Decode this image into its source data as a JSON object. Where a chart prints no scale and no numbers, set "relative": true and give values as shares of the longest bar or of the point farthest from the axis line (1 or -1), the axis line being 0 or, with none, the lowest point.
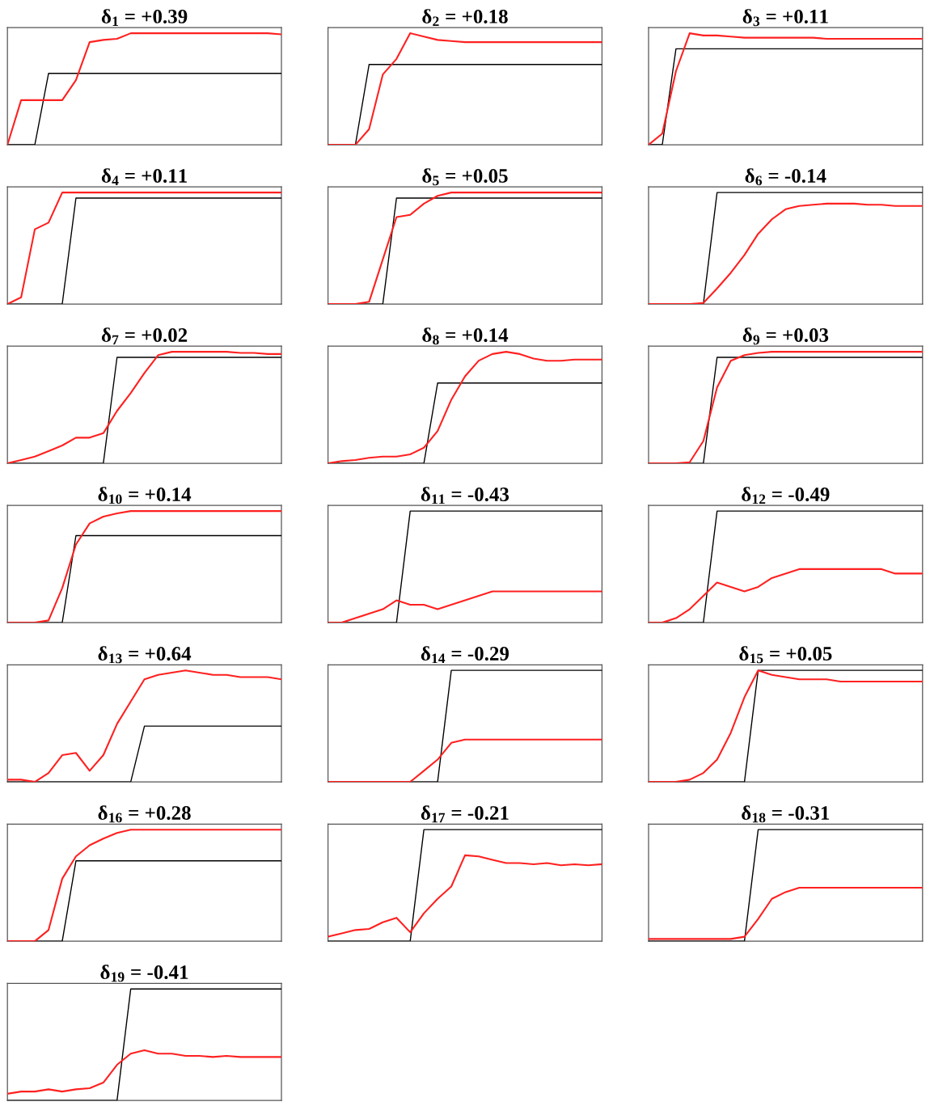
{
  "chart_data": [
    {
      "type": "line",
      "relative": true,
      "title": "δ$_{1}$ = +0.39",
      "categories": [
        null,
        null,
        null,
        null,
        null,
        null,
        null,
        null,
        null,
        null,
        null,
        null,
        null,
        null,
        null,
        null,
        null,
        null,
        null,
        null,
        null
      ],
      "series": [
        {
          "type": "line",
          "color": "#ff2020",
          "values": [
            0,
            0.4,
            0.4,
            0.4,
            0.4,
            0.58,
            0.92,
            0.94,
            0.95,
            1,
            1,
            1,
            1,
            1,
            1,
            1,
            1,
            1,
            1,
            1,
            0.99
          ]
        },
        {
          "type": "line",
          "color": "#000000",
          "values": [
            0,
            0,
            0,
            0.64,
            0.64,
            0.64,
            0.64,
            0.64,
            0.64,
            0.64,
            0.64,
            0.64,
            0.64,
            0.64,
            0.64,
            0.64,
            0.64,
            0.64,
            0.64,
            0.64,
            0.64
          ]
        }
      ]
    },
    {
      "type": "line",
      "relative": true,
      "title": "δ$_{2}$ = +0.18",
      "categories": [
        null,
        null,
        null,
        null,
        null,
        null,
        null,
        null,
        null,
        null,
        null,
        null,
        null,
        null,
        null,
        null,
        null,
        null,
        null,
        null,
        null
      ],
      "series": [
        {
          "type": "line",
          "color": "#ff2020",
          "values": [
            0,
            0,
            0,
            0.14,
            0.63,
            0.77,
            1,
            0.97,
            0.94,
            0.93,
            0.92,
            0.92,
            0.92,
            0.92,
            0.92,
            0.92,
            0.92,
            0.92,
            0.92,
            0.92,
            0.92
          ]
        },
        {
          "type": "line",
          "color": "#000000",
          "values": [
            null,
            null,
            0,
            0.72,
            0.72,
            0.72,
            0.72,
            0.72,
            0.72,
            0.72,
            0.72,
            0.72,
            0.72,
            0.72,
            0.72,
            0.72,
            0.72,
            0.72,
            0.72,
            0.72,
            0.72
          ]
        }
      ]
    },
    {
      "type": "line",
      "relative": true,
      "title": "δ$_{3}$ = +0.11",
      "categories": [
        null,
        null,
        null,
        null,
        null,
        null,
        null,
        null,
        null,
        null,
        null,
        null,
        null,
        null,
        null,
        null,
        null,
        null,
        null,
        null,
        null
      ],
      "series": [
        {
          "type": "line",
          "color": "#ff2020",
          "values": [
            0,
            0.1,
            0.66,
            1,
            0.98,
            0.98,
            0.97,
            0.96,
            0.96,
            0.96,
            0.96,
            0.96,
            0.96,
            0.95,
            0.95,
            0.95,
            0.95,
            0.95,
            0.95,
            0.95,
            0.95
          ]
        },
        {
          "type": "line",
          "color": "#000000",
          "values": [
            0,
            0,
            0.86,
            0.86,
            0.86,
            0.86,
            0.86,
            0.86,
            0.86,
            0.86,
            0.86,
            0.86,
            0.86,
            0.86,
            0.86,
            0.86,
            0.86,
            0.86,
            0.86,
            0.86,
            0.86
          ]
        }
      ]
    },
    {
      "type": "line",
      "relative": true,
      "title": "δ$_{4}$ = +0.11",
      "categories": [
        null,
        null,
        null,
        null,
        null,
        null,
        null,
        null,
        null,
        null,
        null,
        null,
        null,
        null,
        null,
        null,
        null,
        null,
        null,
        null,
        null
      ],
      "series": [
        {
          "type": "line",
          "color": "#ff2020",
          "values": [
            0,
            0.06,
            0.67,
            0.73,
            1,
            1,
            1,
            1,
            1,
            1,
            1,
            1,
            1,
            1,
            1,
            1,
            1,
            1,
            1,
            1,
            1
          ]
        },
        {
          "type": "line",
          "color": "#000000",
          "values": [
            0,
            0,
            0,
            0,
            0,
            0.95,
            0.95,
            0.95,
            0.95,
            0.95,
            0.95,
            0.95,
            0.95,
            0.95,
            0.95,
            0.95,
            0.95,
            0.95,
            0.95,
            0.95,
            0.95
          ]
        }
      ]
    },
    {
      "type": "line",
      "relative": true,
      "title": "δ$_{5}$ = +0.05",
      "categories": [
        null,
        null,
        null,
        null,
        null,
        null,
        null,
        null,
        null,
        null,
        null,
        null,
        null,
        null,
        null,
        null,
        null,
        null,
        null,
        null,
        null
      ],
      "series": [
        {
          "type": "line",
          "color": "#ff2020",
          "values": [
            0,
            0,
            0,
            0.02,
            0.4,
            0.78,
            0.8,
            0.9,
            0.97,
            1,
            1,
            1,
            1,
            1,
            1,
            1,
            1,
            1,
            1,
            1,
            1
          ]
        },
        {
          "type": "line",
          "color": "#000000",
          "values": [
            null,
            null,
            0,
            0,
            0,
            0.95,
            0.95,
            0.95,
            0.95,
            0.95,
            0.95,
            0.95,
            0.95,
            0.95,
            0.95,
            0.95,
            0.95,
            0.95,
            0.95,
            0.95,
            0.95
          ]
        }
      ]
    },
    {
      "type": "line",
      "relative": true,
      "title": "δ$_{6}$ = -0.14",
      "categories": [
        null,
        null,
        null,
        null,
        null,
        null,
        null,
        null,
        null,
        null,
        null,
        null,
        null,
        null,
        null,
        null,
        null,
        null,
        null,
        null,
        null
      ],
      "series": [
        {
          "type": "line",
          "color": "#ff2020",
          "values": [
            0,
            0,
            0,
            0,
            0.01,
            0.14,
            0.28,
            0.44,
            0.63,
            0.76,
            0.85,
            0.88,
            0.89,
            0.9,
            0.9,
            0.9,
            0.89,
            0.89,
            0.88,
            0.88,
            0.88
          ]
        },
        {
          "type": "line",
          "color": "#000000",
          "values": [
            null,
            null,
            null,
            0,
            0,
            1,
            1,
            1,
            1,
            1,
            1,
            1,
            1,
            1,
            1,
            1,
            1,
            1,
            1,
            1,
            1
          ]
        }
      ]
    },
    {
      "type": "line",
      "relative": true,
      "title": "δ$_{7}$ = +0.02",
      "categories": [
        null,
        null,
        null,
        null,
        null,
        null,
        null,
        null,
        null,
        null,
        null,
        null,
        null,
        null,
        null,
        null,
        null,
        null,
        null,
        null,
        null
      ],
      "series": [
        {
          "type": "line",
          "color": "#ff2020",
          "values": [
            0,
            0.03,
            0.06,
            0.11,
            0.16,
            0.23,
            0.23,
            0.27,
            0.47,
            0.63,
            0.81,
            0.97,
            1,
            1,
            1,
            1,
            1,
            0.99,
            0.99,
            0.98,
            0.98
          ]
        },
        {
          "type": "line",
          "color": "#000000",
          "values": [
            0,
            0,
            0,
            0,
            0,
            0,
            0,
            0,
            0.95,
            0.95,
            0.95,
            0.95,
            0.95,
            0.95,
            0.95,
            0.95,
            0.95,
            0.95,
            0.95,
            0.95,
            0.95
          ]
        }
      ]
    },
    {
      "type": "line",
      "relative": true,
      "title": "δ$_{8}$ = +0.14",
      "categories": [
        null,
        null,
        null,
        null,
        null,
        null,
        null,
        null,
        null,
        null,
        null,
        null,
        null,
        null,
        null,
        null,
        null,
        null,
        null,
        null,
        null
      ],
      "series": [
        {
          "type": "line",
          "color": "#ff2020",
          "values": [
            0,
            0.02,
            0.03,
            0.05,
            0.06,
            0.06,
            0.08,
            0.14,
            0.29,
            0.57,
            0.78,
            0.92,
            0.98,
            1,
            0.98,
            0.94,
            0.92,
            0.92,
            0.93,
            0.93,
            0.93
          ]
        },
        {
          "type": "line",
          "color": "#000000",
          "values": [
            0,
            0,
            0,
            0,
            0,
            0,
            0,
            0,
            0.72,
            0.72,
            0.72,
            0.72,
            0.72,
            0.72,
            0.72,
            0.72,
            0.72,
            0.72,
            0.72,
            0.72,
            0.72
          ]
        }
      ]
    },
    {
      "type": "line",
      "relative": true,
      "title": "δ$_{9}$ = +0.03",
      "categories": [
        null,
        null,
        null,
        null,
        null,
        null,
        null,
        null,
        null,
        null,
        null,
        null,
        null,
        null,
        null,
        null,
        null,
        null,
        null,
        null,
        null
      ],
      "series": [
        {
          "type": "line",
          "color": "#ff2020",
          "values": [
            0,
            0,
            0,
            0.01,
            0.2,
            0.68,
            0.92,
            0.97,
            0.99,
            1,
            1,
            1,
            1,
            1,
            1,
            1,
            1,
            1,
            1,
            1,
            1
          ]
        },
        {
          "type": "line",
          "color": "#000000",
          "values": [
            null,
            null,
            0,
            0,
            0,
            0.95,
            0.95,
            0.95,
            0.95,
            0.95,
            0.95,
            0.95,
            0.95,
            0.95,
            0.95,
            0.95,
            0.95,
            0.95,
            0.95,
            0.95,
            0.95
          ]
        }
      ]
    },
    {
      "type": "line",
      "relative": true,
      "title": "δ$_{10}$ = +0.14",
      "categories": [
        null,
        null,
        null,
        null,
        null,
        null,
        null,
        null,
        null,
        null,
        null,
        null,
        null,
        null,
        null,
        null,
        null,
        null,
        null,
        null,
        null
      ],
      "series": [
        {
          "type": "line",
          "color": "#ff2020",
          "values": [
            0,
            0,
            0,
            0.02,
            0.31,
            0.7,
            0.89,
            0.95,
            0.98,
            1,
            1,
            1,
            1,
            1,
            1,
            1,
            1,
            1,
            1,
            1,
            1
          ]
        },
        {
          "type": "line",
          "color": "#000000",
          "values": [
            null,
            null,
            0,
            0,
            0,
            0.78,
            0.78,
            0.78,
            0.78,
            0.78,
            0.78,
            0.78,
            0.78,
            0.78,
            0.78,
            0.78,
            0.78,
            0.78,
            0.78,
            0.78,
            0.78
          ]
        }
      ]
    },
    {
      "type": "line",
      "relative": true,
      "title": "δ$_{11}$ = -0.43",
      "categories": [
        null,
        null,
        null,
        null,
        null,
        null,
        null,
        null,
        null,
        null,
        null,
        null,
        null,
        null,
        null,
        null,
        null,
        null,
        null,
        null,
        null
      ],
      "series": [
        {
          "type": "line",
          "color": "#ff2020",
          "values": [
            0,
            0,
            0.04,
            0.08,
            0.12,
            0.2,
            0.16,
            0.16,
            0.12,
            0.16,
            0.2,
            0.24,
            0.28,
            0.28,
            0.28,
            0.28,
            0.28,
            0.28,
            0.28,
            0.28,
            0.28
          ]
        },
        {
          "type": "line",
          "color": "#000000",
          "values": [
            null,
            0,
            0,
            0,
            0,
            0,
            1,
            1,
            1,
            1,
            1,
            1,
            1,
            1,
            1,
            1,
            1,
            1,
            1,
            1,
            1
          ]
        }
      ]
    },
    {
      "type": "line",
      "relative": true,
      "title": "δ$_{12}$ = -0.49",
      "categories": [
        null,
        null,
        null,
        null,
        null,
        null,
        null,
        null,
        null,
        null,
        null,
        null,
        null,
        null,
        null,
        null,
        null,
        null,
        null,
        null,
        null
      ],
      "series": [
        {
          "type": "line",
          "color": "#ff2020",
          "values": [
            0,
            0,
            0.04,
            0.12,
            0.24,
            0.36,
            0.32,
            0.28,
            0.32,
            0.4,
            0.44,
            0.48,
            0.48,
            0.48,
            0.48,
            0.48,
            0.48,
            0.48,
            0.44,
            0.44,
            0.44
          ]
        },
        {
          "type": "line",
          "color": "#000000",
          "values": [
            null,
            0,
            0,
            0,
            0,
            1,
            1,
            1,
            1,
            1,
            1,
            1,
            1,
            1,
            1,
            1,
            1,
            1,
            1,
            1,
            1
          ]
        }
      ]
    },
    {
      "type": "line",
      "relative": true,
      "title": "δ$_{13}$ = +0.64",
      "categories": [
        null,
        null,
        null,
        null,
        null,
        null,
        null,
        null,
        null,
        null,
        null,
        null,
        null,
        null,
        null,
        null,
        null,
        null,
        null,
        null,
        null
      ],
      "series": [
        {
          "type": "line",
          "color": "#ff2020",
          "values": [
            0.02,
            0.02,
            0,
            0.08,
            0.24,
            0.26,
            0.1,
            0.24,
            0.52,
            0.72,
            0.92,
            0.96,
            0.98,
            1,
            0.98,
            0.96,
            0.96,
            0.94,
            0.94,
            0.94,
            0.92
          ]
        },
        {
          "type": "line",
          "color": "#000000",
          "values": [
            0,
            0,
            0,
            0,
            0,
            0,
            0,
            0,
            0,
            0,
            0.5,
            0.5,
            0.5,
            0.5,
            0.5,
            0.5,
            0.5,
            0.5,
            0.5,
            0.5,
            0.5
          ]
        }
      ]
    },
    {
      "type": "line",
      "relative": true,
      "title": "δ$_{14}$ = -0.29",
      "categories": [
        null,
        null,
        null,
        null,
        null,
        null,
        null,
        null,
        null,
        null,
        null,
        null,
        null,
        null,
        null,
        null,
        null,
        null,
        null,
        null,
        null
      ],
      "series": [
        {
          "type": "line",
          "color": "#ff2020",
          "values": [
            0,
            0,
            0,
            0,
            0,
            0,
            0,
            0.1,
            0.2,
            0.35,
            0.38,
            0.38,
            0.38,
            0.38,
            0.38,
            0.38,
            0.38,
            0.38,
            0.38,
            0.38,
            0.38
          ]
        },
        {
          "type": "line",
          "color": "#000000",
          "values": [
            null,
            null,
            null,
            null,
            null,
            null,
            0,
            0,
            0,
            1,
            1,
            1,
            1,
            1,
            1,
            1,
            1,
            1,
            1,
            1,
            1
          ]
        }
      ]
    },
    {
      "type": "line",
      "relative": true,
      "title": "δ$_{15}$ = +0.05",
      "categories": [
        null,
        null,
        null,
        null,
        null,
        null,
        null,
        null,
        null,
        null,
        null,
        null,
        null,
        null,
        null,
        null,
        null,
        null,
        null,
        null,
        null
      ],
      "series": [
        {
          "type": "line",
          "color": "#ff2020",
          "values": [
            0,
            0,
            0,
            0.02,
            0.08,
            0.2,
            0.44,
            0.76,
            1,
            0.96,
            0.94,
            0.92,
            0.92,
            0.92,
            0.9,
            0.9,
            0.9,
            0.9,
            0.9,
            0.9,
            0.9
          ]
        },
        {
          "type": "line",
          "color": "#000000",
          "values": [
            null,
            null,
            0,
            0,
            0,
            0,
            0,
            0,
            1,
            1,
            1,
            1,
            1,
            1,
            1,
            1,
            1,
            1,
            1,
            1,
            1
          ]
        }
      ]
    },
    {
      "type": "line",
      "relative": true,
      "title": "δ$_{16}$ = +0.28",
      "categories": [
        null,
        null,
        null,
        null,
        null,
        null,
        null,
        null,
        null,
        null,
        null,
        null,
        null,
        null,
        null,
        null,
        null,
        null,
        null,
        null,
        null
      ],
      "series": [
        {
          "type": "line",
          "color": "#ff2020",
          "values": [
            0,
            0,
            0,
            0.1,
            0.56,
            0.76,
            0.86,
            0.92,
            0.97,
            1,
            1,
            1,
            1,
            1,
            1,
            1,
            1,
            1,
            1,
            1,
            1
          ]
        },
        {
          "type": "line",
          "color": "#000000",
          "values": [
            null,
            null,
            0,
            0,
            0,
            0.72,
            0.72,
            0.72,
            0.72,
            0.72,
            0.72,
            0.72,
            0.72,
            0.72,
            0.72,
            0.72,
            0.72,
            0.72,
            0.72,
            0.72,
            0.72
          ]
        }
      ]
    },
    {
      "type": "line",
      "relative": true,
      "title": "δ$_{17}$ = -0.21",
      "categories": [
        null,
        null,
        null,
        null,
        null,
        null,
        null,
        null,
        null,
        null,
        null,
        null,
        null,
        null,
        null,
        null,
        null,
        null,
        null,
        null,
        null
      ],
      "series": [
        {
          "type": "line",
          "color": "#ff2020",
          "values": [
            0.04,
            0.07,
            0.1,
            0.11,
            0.17,
            0.21,
            0.08,
            0.25,
            0.38,
            0.49,
            0.77,
            0.76,
            0.73,
            0.7,
            0.7,
            0.69,
            0.7,
            0.68,
            0.69,
            0.68,
            0.69
          ]
        },
        {
          "type": "line",
          "color": "#000000",
          "values": [
            0,
            0,
            0,
            0,
            0,
            0,
            0,
            1,
            1,
            1,
            1,
            1,
            1,
            1,
            1,
            1,
            1,
            1,
            1,
            1,
            1
          ]
        }
      ]
    },
    {
      "type": "line",
      "relative": true,
      "title": "δ$_{18}$ = -0.31",
      "categories": [
        null,
        null,
        null,
        null,
        null,
        null,
        null,
        null,
        null,
        null,
        null,
        null,
        null,
        null,
        null,
        null,
        null,
        null,
        null,
        null,
        null
      ],
      "series": [
        {
          "type": "line",
          "color": "#ff2020",
          "values": [
            0.02,
            0.02,
            0.02,
            0.02,
            0.02,
            0.02,
            0.02,
            0.04,
            0.2,
            0.38,
            0.44,
            0.48,
            0.48,
            0.48,
            0.48,
            0.48,
            0.48,
            0.48,
            0.48,
            0.48,
            0.48
          ]
        },
        {
          "type": "line",
          "color": "#000000",
          "values": [
            0,
            0,
            0,
            0,
            0,
            0,
            0,
            0,
            1,
            1,
            1,
            1,
            1,
            1,
            1,
            1,
            1,
            1,
            1,
            1,
            1
          ]
        }
      ]
    },
    {
      "type": "line",
      "relative": true,
      "title": "δ$_{19}$ = -0.41",
      "categories": [
        null,
        null,
        null,
        null,
        null,
        null,
        null,
        null,
        null,
        null,
        null,
        null,
        null,
        null,
        null,
        null,
        null,
        null,
        null,
        null,
        null
      ],
      "series": [
        {
          "type": "line",
          "color": "#ff2020",
          "values": [
            0.06,
            0.08,
            0.08,
            0.1,
            0.08,
            0.1,
            0.11,
            0.16,
            0.32,
            0.42,
            0.45,
            0.42,
            0.42,
            0.4,
            0.4,
            0.39,
            0.4,
            0.39,
            0.39,
            0.39,
            0.39
          ]
        },
        {
          "type": "line",
          "color": "#000000",
          "values": [
            0,
            0,
            0,
            0,
            0,
            0,
            0,
            0,
            0,
            1,
            1,
            1,
            1,
            1,
            1,
            1,
            1,
            1,
            1,
            1,
            1
          ]
        }
      ]
    }
  ]
}
